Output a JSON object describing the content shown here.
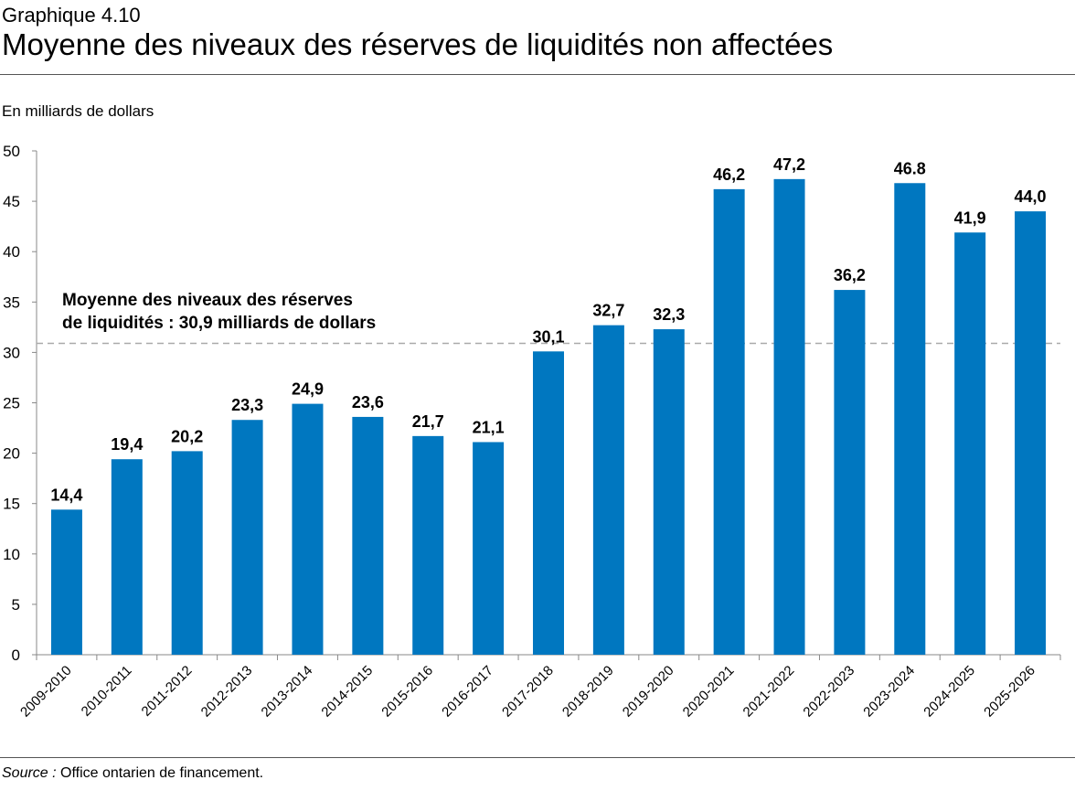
{
  "header": {
    "kicker": "Graphique 4.10",
    "title": "Moyenne des niveaux des réserves de liquidités non affectées"
  },
  "footer": {
    "source_label": "Source :",
    "source_text": " Office ontarien de financement."
  },
  "chart_data": {
    "type": "bar",
    "title": "Moyenne des niveaux des réserves de liquidités non affectées",
    "ylabel": "En milliards de dollars",
    "ylim": [
      0,
      50
    ],
    "yticks": [
      0,
      5,
      10,
      15,
      20,
      25,
      30,
      35,
      40,
      45,
      50
    ],
    "grid": false,
    "bar_color": "#0077C0",
    "categories": [
      "2009-2010",
      "2010-2011",
      "2011-2012",
      "2012-2013",
      "2013-2014",
      "2014-2015",
      "2015-2016",
      "2016-2017",
      "2017-2018",
      "2018-2019",
      "2019-2020",
      "2020-2021",
      "2021-2022",
      "2022-2023",
      "2023-2024",
      "2024-2025",
      "2025-2026"
    ],
    "values": [
      14.4,
      19.4,
      20.2,
      23.3,
      24.9,
      23.6,
      21.7,
      21.1,
      30.1,
      32.7,
      32.3,
      46.2,
      47.2,
      36.2,
      46.8,
      41.9,
      44.0
    ],
    "data_labels": [
      "14,4",
      "19,4",
      "20,2",
      "23,3",
      "24,9",
      "23,6",
      "21,7",
      "21,1",
      "30,1",
      "32,7",
      "32,3",
      "46,2",
      "47,2",
      "36,2",
      "46.8",
      "41,9",
      "44,0"
    ],
    "reference_line": {
      "value": 30.9,
      "style": "dashed",
      "color": "#AAAAAA",
      "label_lines": [
        "Moyenne des niveaux des réserves",
        "de liquidités : 30,9 milliards de dollars"
      ]
    }
  }
}
